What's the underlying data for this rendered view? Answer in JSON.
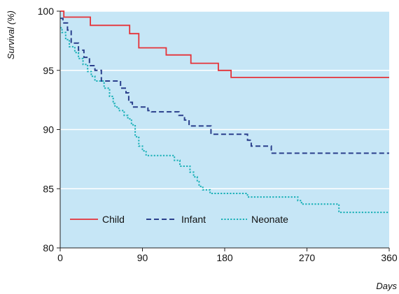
{
  "chart_data": {
    "type": "line",
    "title": "",
    "xlabel": "Days",
    "ylabel": "Survival (%)",
    "xlim": [
      0,
      360
    ],
    "ylim": [
      80,
      100
    ],
    "x_ticks": [
      0,
      90,
      180,
      270,
      360
    ],
    "y_ticks": [
      80,
      85,
      90,
      95,
      100
    ],
    "grid": "horizontal",
    "legend_position": "lower-left",
    "colors": {
      "plot_background": "#c6e6f6",
      "gridline": "#ffffff"
    },
    "series": [
      {
        "name": "Child",
        "color": "#e53238",
        "dash": "solid",
        "steps": [
          [
            0,
            100
          ],
          [
            4,
            100
          ],
          [
            4,
            99.5
          ],
          [
            16,
            99.5
          ],
          [
            16,
            99.5
          ],
          [
            33,
            99.5
          ],
          [
            33,
            98.8
          ],
          [
            76,
            98.8
          ],
          [
            76,
            98.1
          ],
          [
            86,
            98.1
          ],
          [
            86,
            96.9
          ],
          [
            116,
            96.9
          ],
          [
            116,
            96.3
          ],
          [
            143,
            96.3
          ],
          [
            143,
            95.6
          ],
          [
            173,
            95.6
          ],
          [
            173,
            95.0
          ],
          [
            187,
            95.0
          ],
          [
            187,
            94.4
          ],
          [
            360,
            94.4
          ]
        ]
      },
      {
        "name": "Infant",
        "color": "#2a3f8c",
        "dash": "dashed",
        "steps": [
          [
            0,
            99.4
          ],
          [
            3,
            99.4
          ],
          [
            3,
            99.0
          ],
          [
            8,
            99.0
          ],
          [
            8,
            98.4
          ],
          [
            12,
            98.4
          ],
          [
            12,
            97.3
          ],
          [
            20,
            97.3
          ],
          [
            20,
            96.7
          ],
          [
            26,
            96.7
          ],
          [
            26,
            96.1
          ],
          [
            32,
            96.1
          ],
          [
            32,
            95.4
          ],
          [
            38,
            95.4
          ],
          [
            38,
            95.0
          ],
          [
            45,
            95.0
          ],
          [
            45,
            94.1
          ],
          [
            66,
            94.1
          ],
          [
            66,
            93.5
          ],
          [
            72,
            93.5
          ],
          [
            72,
            93.1
          ],
          [
            75,
            93.1
          ],
          [
            75,
            92.3
          ],
          [
            79,
            92.3
          ],
          [
            79,
            91.9
          ],
          [
            96,
            91.9
          ],
          [
            96,
            91.6
          ],
          [
            100,
            91.6
          ],
          [
            100,
            91.5
          ],
          [
            130,
            91.5
          ],
          [
            130,
            91.2
          ],
          [
            136,
            91.2
          ],
          [
            136,
            90.8
          ],
          [
            141,
            90.8
          ],
          [
            141,
            90.3
          ],
          [
            165,
            90.3
          ],
          [
            165,
            89.6
          ],
          [
            205,
            89.6
          ],
          [
            205,
            89.1
          ],
          [
            209,
            89.1
          ],
          [
            209,
            88.6
          ],
          [
            231,
            88.6
          ],
          [
            231,
            88.0
          ],
          [
            360,
            88.0
          ]
        ]
      },
      {
        "name": "Neonate",
        "color": "#19b0b7",
        "dash": "dotted",
        "steps": [
          [
            0,
            98.6
          ],
          [
            2,
            98.6
          ],
          [
            2,
            98.2
          ],
          [
            6,
            98.2
          ],
          [
            6,
            97.6
          ],
          [
            10,
            97.6
          ],
          [
            10,
            97.0
          ],
          [
            16,
            97.0
          ],
          [
            16,
            96.5
          ],
          [
            20,
            96.5
          ],
          [
            20,
            96.0
          ],
          [
            25,
            96.0
          ],
          [
            25,
            95.5
          ],
          [
            30,
            95.5
          ],
          [
            30,
            94.9
          ],
          [
            34,
            94.9
          ],
          [
            34,
            94.5
          ],
          [
            38,
            94.5
          ],
          [
            38,
            94.1
          ],
          [
            48,
            94.1
          ],
          [
            48,
            93.5
          ],
          [
            54,
            93.5
          ],
          [
            54,
            92.8
          ],
          [
            58,
            92.8
          ],
          [
            58,
            92.2
          ],
          [
            60,
            92.2
          ],
          [
            60,
            91.9
          ],
          [
            64,
            91.9
          ],
          [
            64,
            91.6
          ],
          [
            70,
            91.6
          ],
          [
            70,
            91.2
          ],
          [
            74,
            91.2
          ],
          [
            74,
            90.9
          ],
          [
            78,
            90.9
          ],
          [
            78,
            90.4
          ],
          [
            82,
            90.4
          ],
          [
            82,
            89.4
          ],
          [
            86,
            89.4
          ],
          [
            86,
            88.6
          ],
          [
            90,
            88.6
          ],
          [
            90,
            88.2
          ],
          [
            94,
            88.2
          ],
          [
            94,
            87.8
          ],
          [
            125,
            87.8
          ],
          [
            125,
            87.4
          ],
          [
            131,
            87.4
          ],
          [
            131,
            86.9
          ],
          [
            142,
            86.9
          ],
          [
            142,
            86.4
          ],
          [
            146,
            86.4
          ],
          [
            146,
            86.0
          ],
          [
            150,
            86.0
          ],
          [
            150,
            85.6
          ],
          [
            152,
            85.6
          ],
          [
            152,
            85.2
          ],
          [
            156,
            85.2
          ],
          [
            156,
            84.9
          ],
          [
            164,
            84.9
          ],
          [
            164,
            84.6
          ],
          [
            205,
            84.6
          ],
          [
            205,
            84.3
          ],
          [
            260,
            84.3
          ],
          [
            260,
            84.0
          ],
          [
            264,
            84.0
          ],
          [
            264,
            83.7
          ],
          [
            305,
            83.7
          ],
          [
            305,
            83.0
          ],
          [
            360,
            83.0
          ]
        ]
      }
    ]
  }
}
